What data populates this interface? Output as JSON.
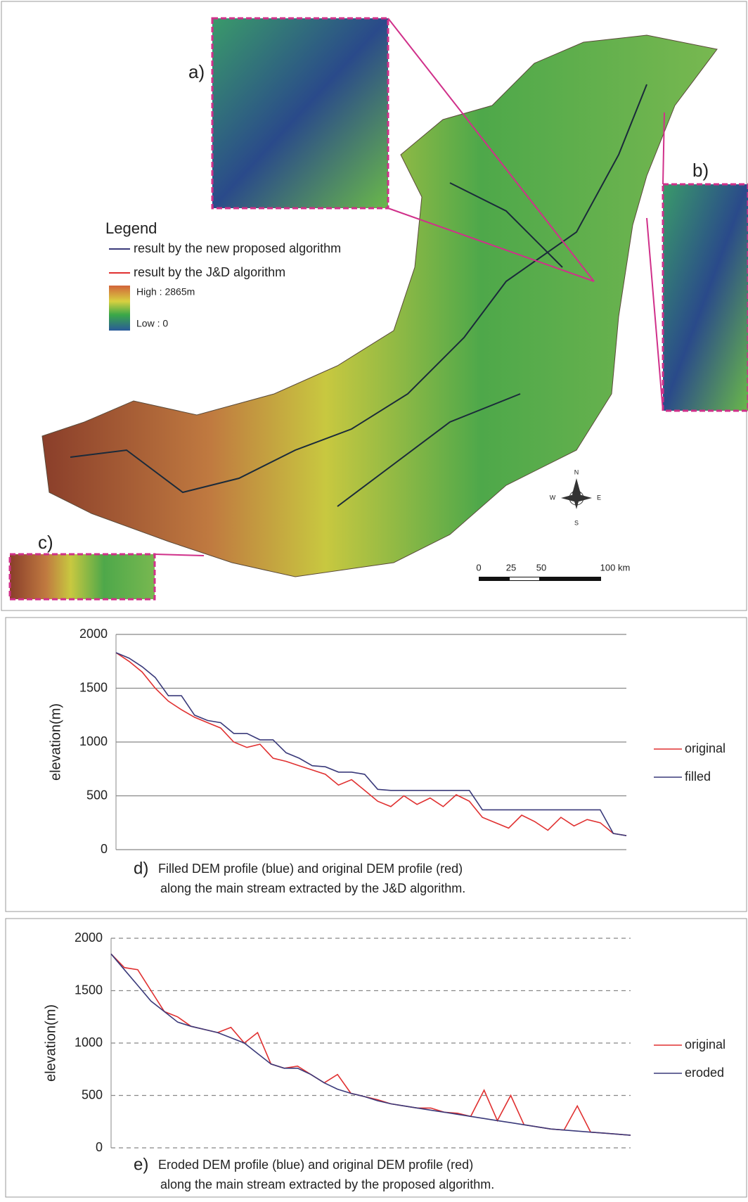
{
  "map": {
    "inset_labels": [
      "a)",
      "b)",
      "c)"
    ],
    "legend": {
      "title": "Legend",
      "items": [
        "result by the new proposed algorithm",
        "result by the J&D algorithm"
      ],
      "high": "High : 2865m",
      "low": "Low : 0"
    },
    "compass": [
      "N",
      "S",
      "E",
      "W"
    ],
    "scale_labels": [
      "0",
      "25",
      "50",
      "100 km"
    ]
  },
  "chart_data": [
    {
      "type": "line",
      "caption_label": "d)",
      "caption_lines": [
        "Filled DEM profile (blue) and original DEM profile (red)",
        "along the main stream extracted by the J&D algorithm."
      ],
      "y_label": "elevation(m)",
      "ylim": [
        0,
        2000
      ],
      "yticks": [
        0,
        500,
        1000,
        1500,
        2000
      ],
      "grid": true,
      "grid_style": "solid",
      "series": [
        {
          "name": "original",
          "color": "#e03030",
          "values": [
            1830,
            1750,
            1650,
            1500,
            1380,
            1300,
            1230,
            1180,
            1130,
            1000,
            950,
            980,
            850,
            820,
            780,
            740,
            700,
            600,
            650,
            550,
            450,
            400,
            500,
            420,
            480,
            400,
            510,
            450,
            300,
            250,
            200,
            320,
            260,
            180,
            300,
            220,
            280,
            250,
            150,
            130
          ]
        },
        {
          "name": "filled",
          "color": "#3a3a7a",
          "values": [
            1830,
            1780,
            1700,
            1600,
            1430,
            1430,
            1250,
            1200,
            1180,
            1080,
            1080,
            1020,
            1020,
            900,
            850,
            780,
            770,
            720,
            720,
            700,
            560,
            550,
            550,
            550,
            550,
            550,
            550,
            550,
            370,
            370,
            370,
            370,
            370,
            370,
            370,
            370,
            370,
            370,
            150,
            130
          ]
        }
      ]
    },
    {
      "type": "line",
      "caption_label": "e)",
      "caption_lines": [
        "Eroded DEM profile (blue) and original DEM profile (red)",
        "along the main stream extracted by the proposed algorithm."
      ],
      "y_label": "elevation(m)",
      "ylim": [
        0,
        2000
      ],
      "yticks": [
        0,
        500,
        1000,
        1500,
        2000
      ],
      "grid": true,
      "grid_style": "dashed",
      "series": [
        {
          "name": "original",
          "color": "#e03030",
          "values": [
            1850,
            1720,
            1700,
            1500,
            1300,
            1250,
            1160,
            1130,
            1100,
            1150,
            1000,
            1100,
            800,
            760,
            780,
            700,
            620,
            700,
            520,
            490,
            460,
            420,
            400,
            380,
            380,
            340,
            330,
            300,
            550,
            260,
            500,
            220,
            200,
            180,
            170,
            400,
            150,
            140,
            130,
            120
          ]
        },
        {
          "name": "eroded",
          "color": "#3a3a7a",
          "values": [
            1850,
            1700,
            1550,
            1400,
            1300,
            1200,
            1160,
            1130,
            1100,
            1050,
            1000,
            900,
            800,
            760,
            760,
            700,
            620,
            560,
            520,
            490,
            450,
            420,
            400,
            380,
            360,
            340,
            320,
            300,
            280,
            260,
            240,
            220,
            200,
            180,
            170,
            160,
            150,
            140,
            130,
            120
          ]
        }
      ]
    }
  ]
}
